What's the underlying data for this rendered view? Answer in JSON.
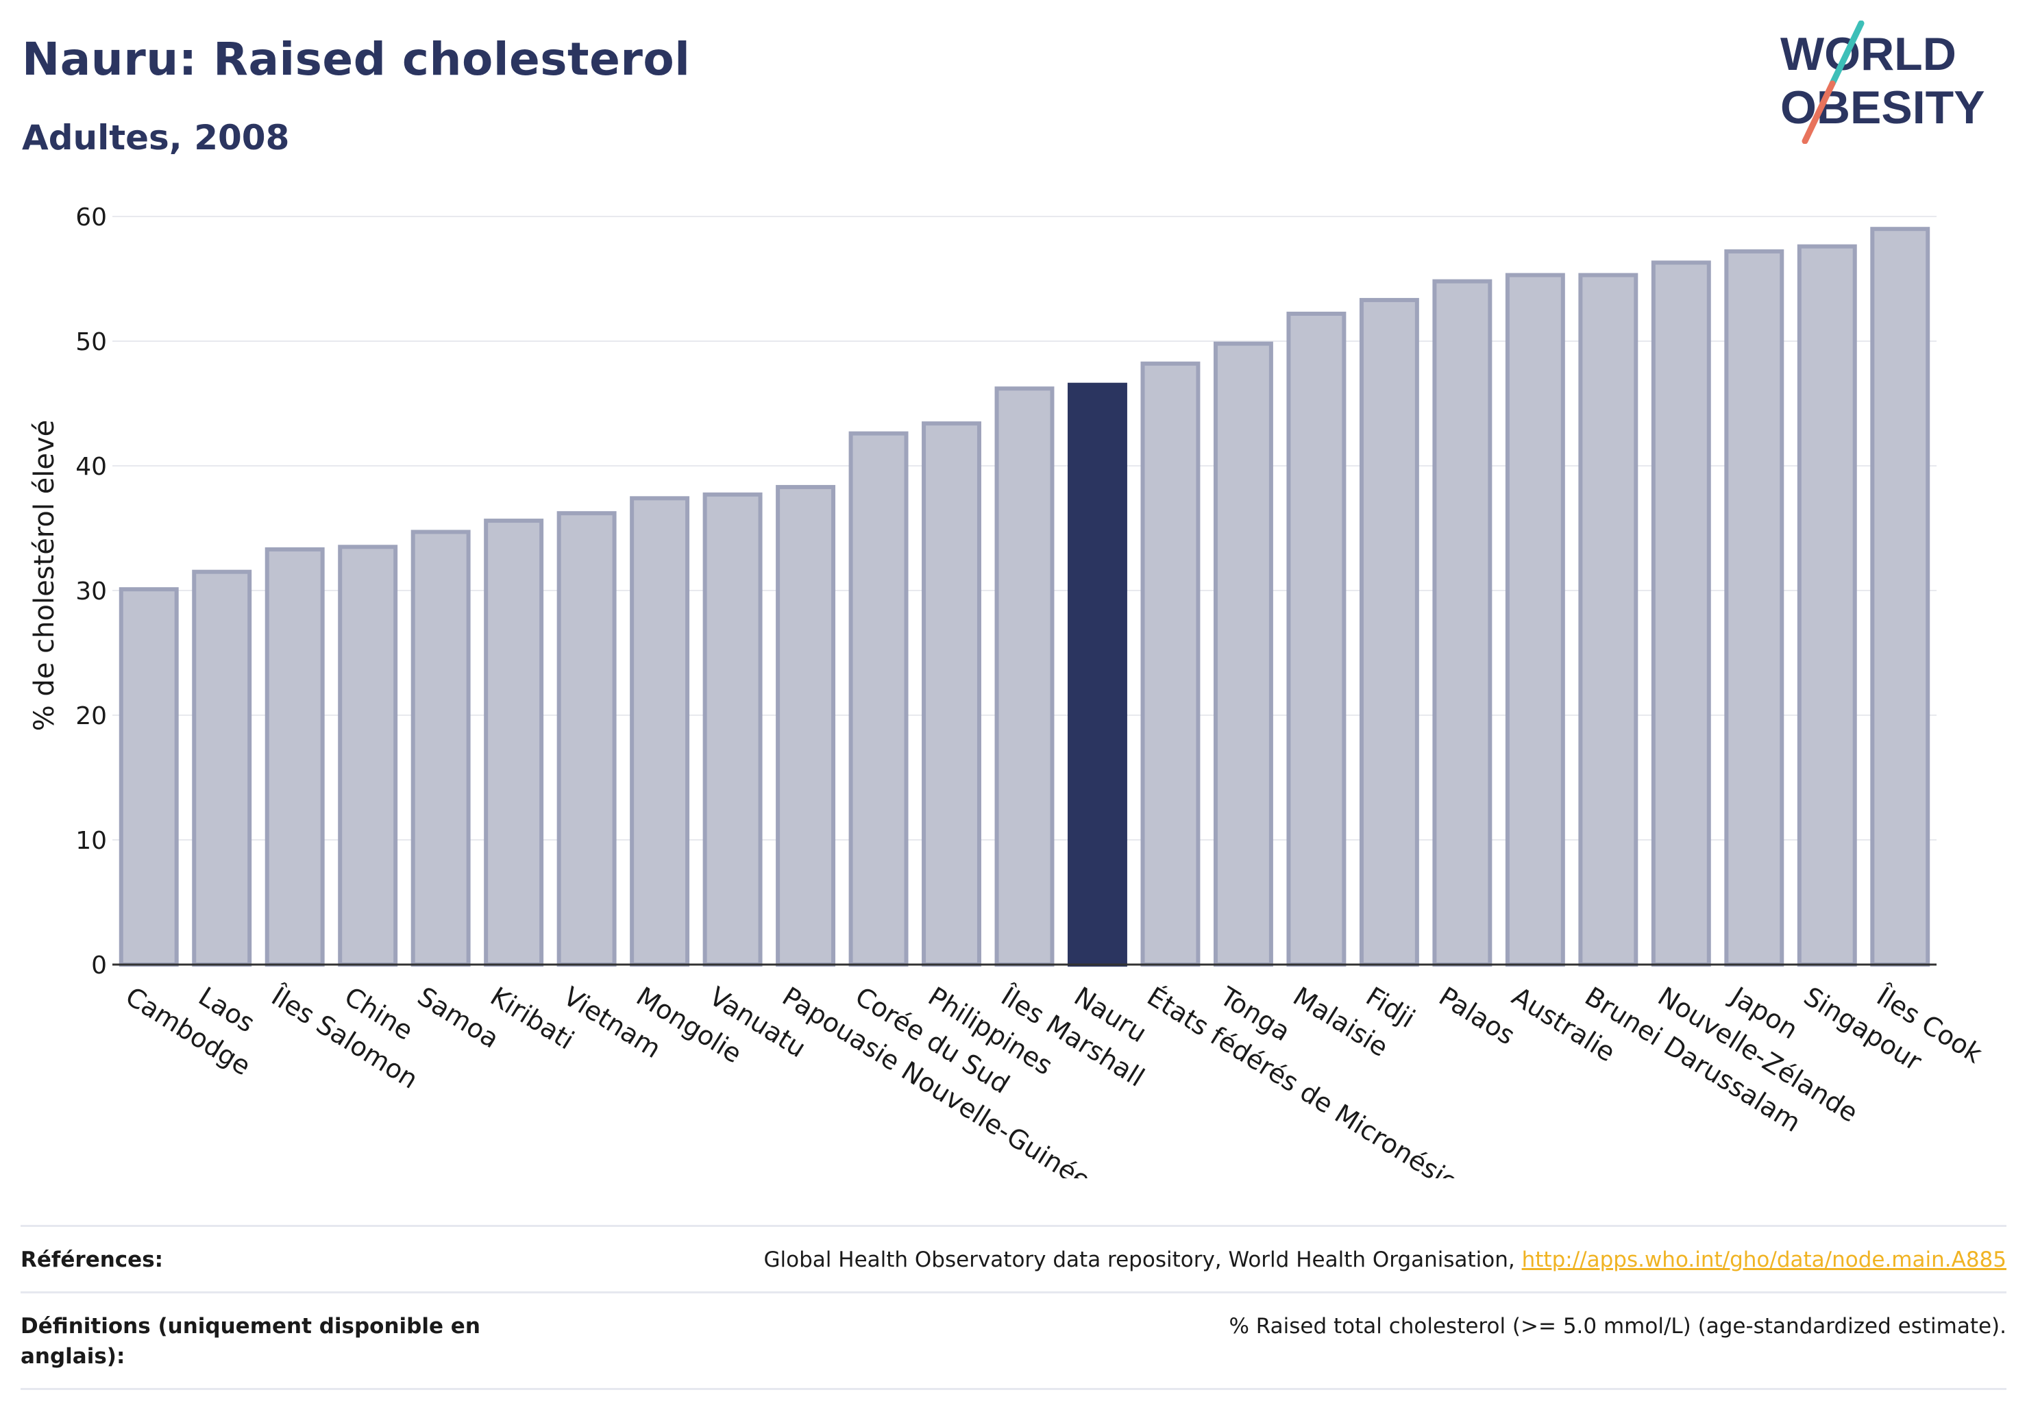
{
  "header": {
    "title": "Nauru: Raised cholesterol",
    "subtitle": "Adultes, 2008",
    "logo_line1": "WORLD",
    "logo_line2": "OBESITY"
  },
  "chart_data": {
    "type": "bar",
    "title": "Nauru: Raised cholesterol",
    "subtitle": "Adultes, 2008",
    "ylabel": "% de cholestérol élevé",
    "xlabel": "",
    "ylim": [
      0,
      60
    ],
    "yticks": [
      0,
      10,
      20,
      30,
      40,
      50,
      60
    ],
    "grid": true,
    "categories": [
      "Cambodge",
      "Laos",
      "Îles Salomon",
      "Chine",
      "Samoa",
      "Kiribati",
      "Vietnam",
      "Mongolie",
      "Vanuatu",
      "Papouasie Nouvelle-Guinée",
      "Corée du Sud",
      "Philippines",
      "Îles Marshall",
      "Nauru",
      "États fédérés de Micronésie",
      "Tonga",
      "Malaisie",
      "Fidji",
      "Palaos",
      "Australie",
      "Brunei Darussalam",
      "Nouvelle-Zélande",
      "Japon",
      "Singapour",
      "Îles Cook"
    ],
    "values": [
      30.1,
      31.5,
      33.3,
      33.5,
      34.7,
      35.6,
      36.2,
      37.4,
      37.7,
      38.3,
      42.6,
      43.4,
      46.2,
      46.5,
      48.2,
      49.8,
      52.2,
      53.3,
      54.8,
      55.3,
      55.3,
      56.3,
      57.2,
      57.6,
      59.0
    ],
    "highlight": "Nauru",
    "colors": {
      "bar": "#bfc2d0",
      "bar_edge": "#9ea3bb",
      "highlight": "#2b3560",
      "grid": "#e8e9ee",
      "axis": "#333333"
    }
  },
  "footer": {
    "references_label": "Références:",
    "references_text": "Global Health Observatory data repository, World Health Organisation, ",
    "references_link": "http://apps.who.int/gho/data/node.main.A885",
    "definitions_label": "Définitions (uniquement disponible en anglais):",
    "definitions_text": "% Raised total cholesterol (>= 5.0 mmol/L) (age-standardized estimate)."
  }
}
